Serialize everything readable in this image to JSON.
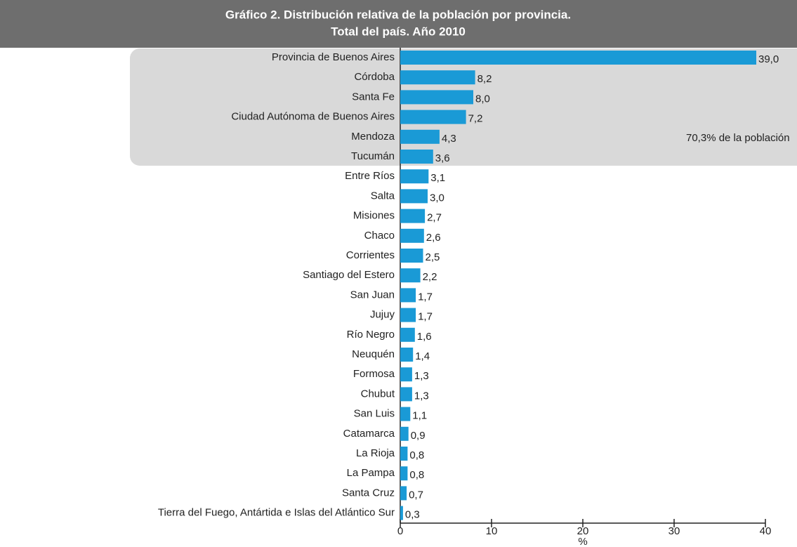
{
  "chart_data": {
    "type": "barh",
    "title": [
      "Gráfico 2. Distribución relativa de la población por provincia.",
      "Total del país. Año 2010"
    ],
    "annotation": "70,3% de la población",
    "xlabel": "%",
    "categories": [
      "Provincia de Buenos Aires",
      "Córdoba",
      "Santa Fe",
      "Ciudad Autónoma de Buenos Aires",
      "Mendoza",
      "Tucumán",
      "Entre Ríos",
      "Salta",
      "Misiones",
      "Chaco",
      "Corrientes",
      "Santiago del Estero",
      "San Juan",
      "Jujuy",
      "Río Negro",
      "Neuquén",
      "Formosa",
      "Chubut",
      "San Luis",
      "Catamarca",
      "La Rioja",
      "La Pampa",
      "Santa Cruz",
      "Tierra del Fuego, Antártida e Islas del Atlántico Sur"
    ],
    "values": [
      39.0,
      8.2,
      8.0,
      7.2,
      4.3,
      3.6,
      3.1,
      3.0,
      2.7,
      2.6,
      2.5,
      2.2,
      1.7,
      1.7,
      1.6,
      1.4,
      1.3,
      1.3,
      1.1,
      0.9,
      0.8,
      0.8,
      0.7,
      0.3
    ],
    "value_labels": [
      "39,0",
      "8,2",
      "8,0",
      "7,2",
      "4,3",
      "3,6",
      "3,1",
      "3,0",
      "2,7",
      "2,6",
      "2,5",
      "2,2",
      "1,7",
      "1,7",
      "1,6",
      "1,4",
      "1,3",
      "1,3",
      "1,1",
      "0,9",
      "0,8",
      "0,8",
      "0,7",
      "0,3"
    ],
    "color": "#1a9ad6",
    "xlim": [
      0,
      40
    ],
    "xticks": [
      0,
      10,
      20,
      30,
      40
    ]
  }
}
